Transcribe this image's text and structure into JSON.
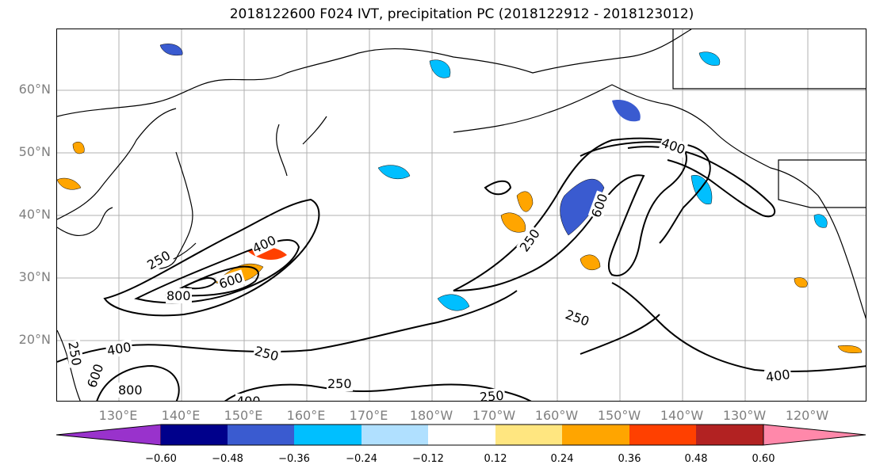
{
  "title": "2018122600 F024 IVT, precipitation PC (2018122912 - 2018123012)",
  "lat_labels": [
    "60°N",
    "50°N",
    "40°N",
    "30°N",
    "20°N"
  ],
  "lon_labels": [
    "130°E",
    "140°E",
    "150°E",
    "160°E",
    "170°E",
    "180°W",
    "170°W",
    "160°W",
    "150°W",
    "140°W",
    "130°W",
    "120°W"
  ],
  "contour_labels": [
    "250",
    "400",
    "600",
    "800",
    "250",
    "400",
    "600",
    "800",
    "250",
    "400",
    "250",
    "600",
    "250",
    "400",
    "400",
    "250",
    "250"
  ],
  "colorbar": {
    "ticks": [
      "−0.60",
      "−0.48",
      "−0.36",
      "−0.24",
      "−0.12",
      "0.12",
      "0.24",
      "0.36",
      "0.48",
      "0.60"
    ],
    "colors": [
      "#9932cc",
      "#00008b",
      "#3a5bd0",
      "#00bfff",
      "#b0e0ff",
      "#ffffff",
      "#ffe680",
      "#ffa500",
      "#ff4000",
      "#b22222",
      "#ff88aa"
    ]
  }
}
